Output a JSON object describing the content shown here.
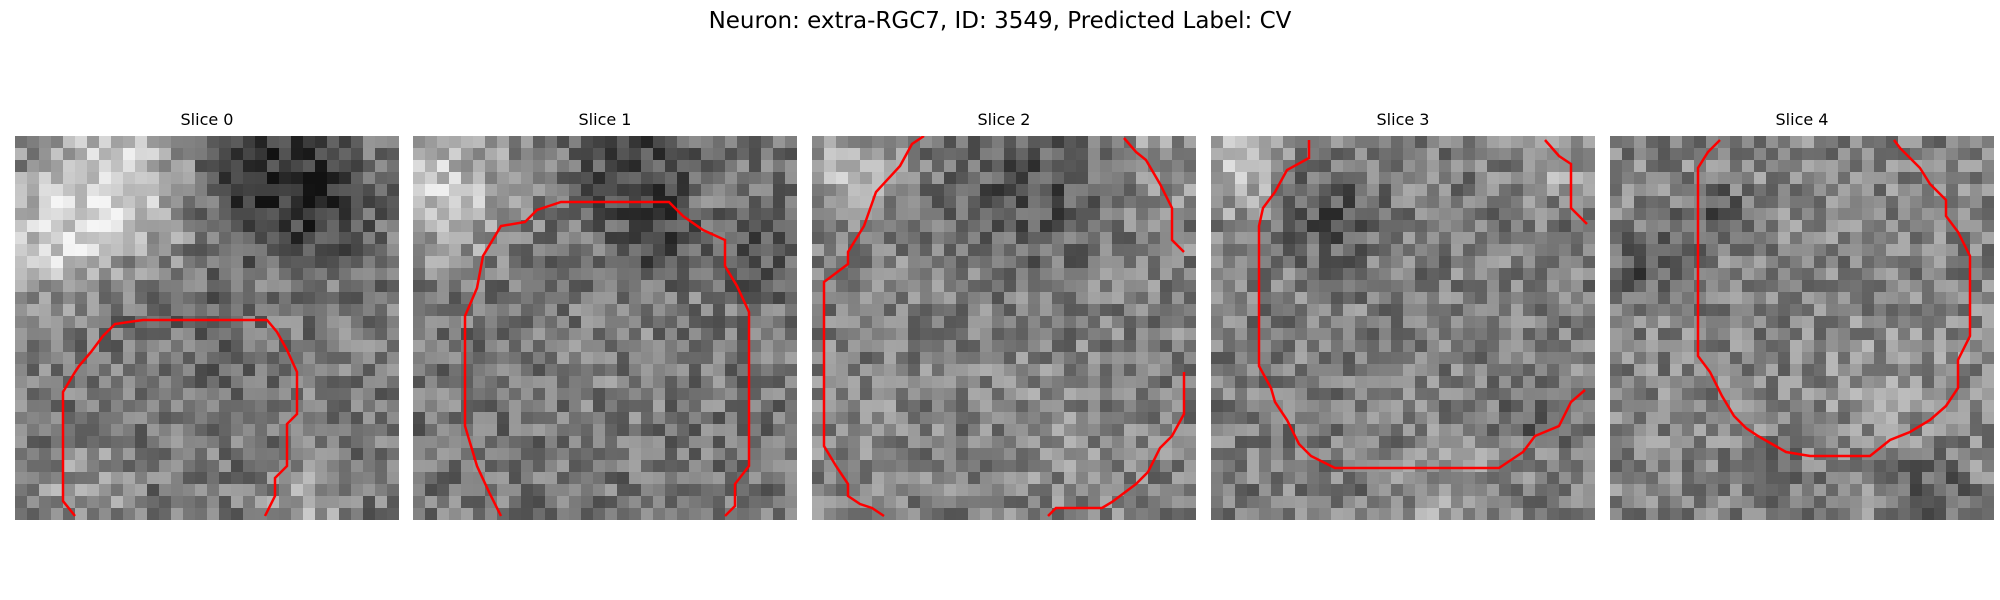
{
  "figure": {
    "title": "Neuron: extra-RGC7, ID: 3549, Predicted Label: CV"
  },
  "slices": [
    {
      "title": "Slice 0"
    },
    {
      "title": "Slice 1"
    },
    {
      "title": "Slice 2"
    },
    {
      "title": "Slice 3"
    },
    {
      "title": "Slice 4"
    }
  ],
  "colors": {
    "contour": "#ff0000",
    "background": "#ffffff"
  }
}
